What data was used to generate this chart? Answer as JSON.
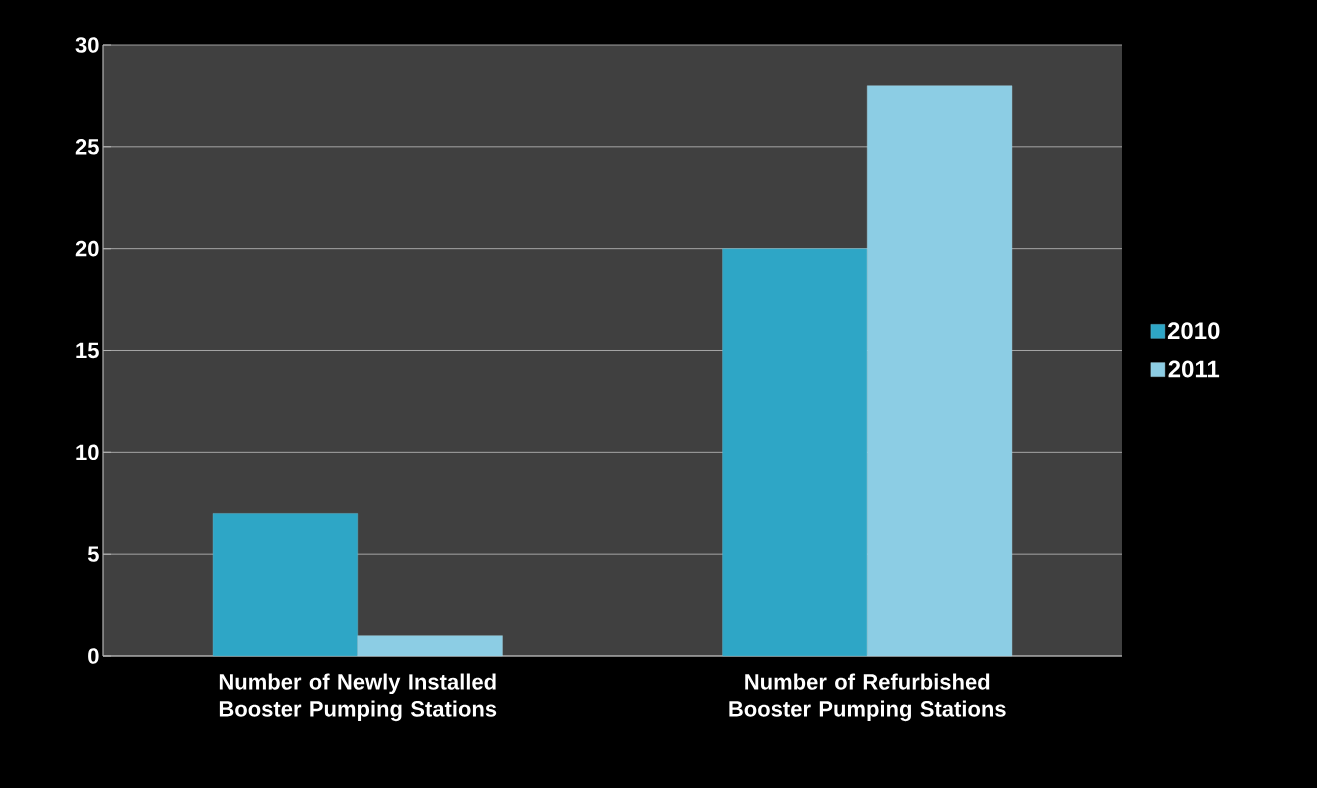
{
  "chart_data": {
    "type": "bar",
    "categories": [
      "Number of Newly Installed Booster Pumping Stations",
      "Number of Refurbished Booster Pumping Stations"
    ],
    "series": [
      {
        "name": "2010",
        "color": "#2ea6c6",
        "values": [
          7,
          20
        ]
      },
      {
        "name": "2011",
        "color": "#8ccde4",
        "values": [
          1,
          28
        ]
      }
    ],
    "ylim": [
      0,
      30
    ],
    "yticks": [
      0,
      5,
      10,
      15,
      20,
      25,
      30
    ],
    "grid": "y",
    "legend": "right"
  }
}
